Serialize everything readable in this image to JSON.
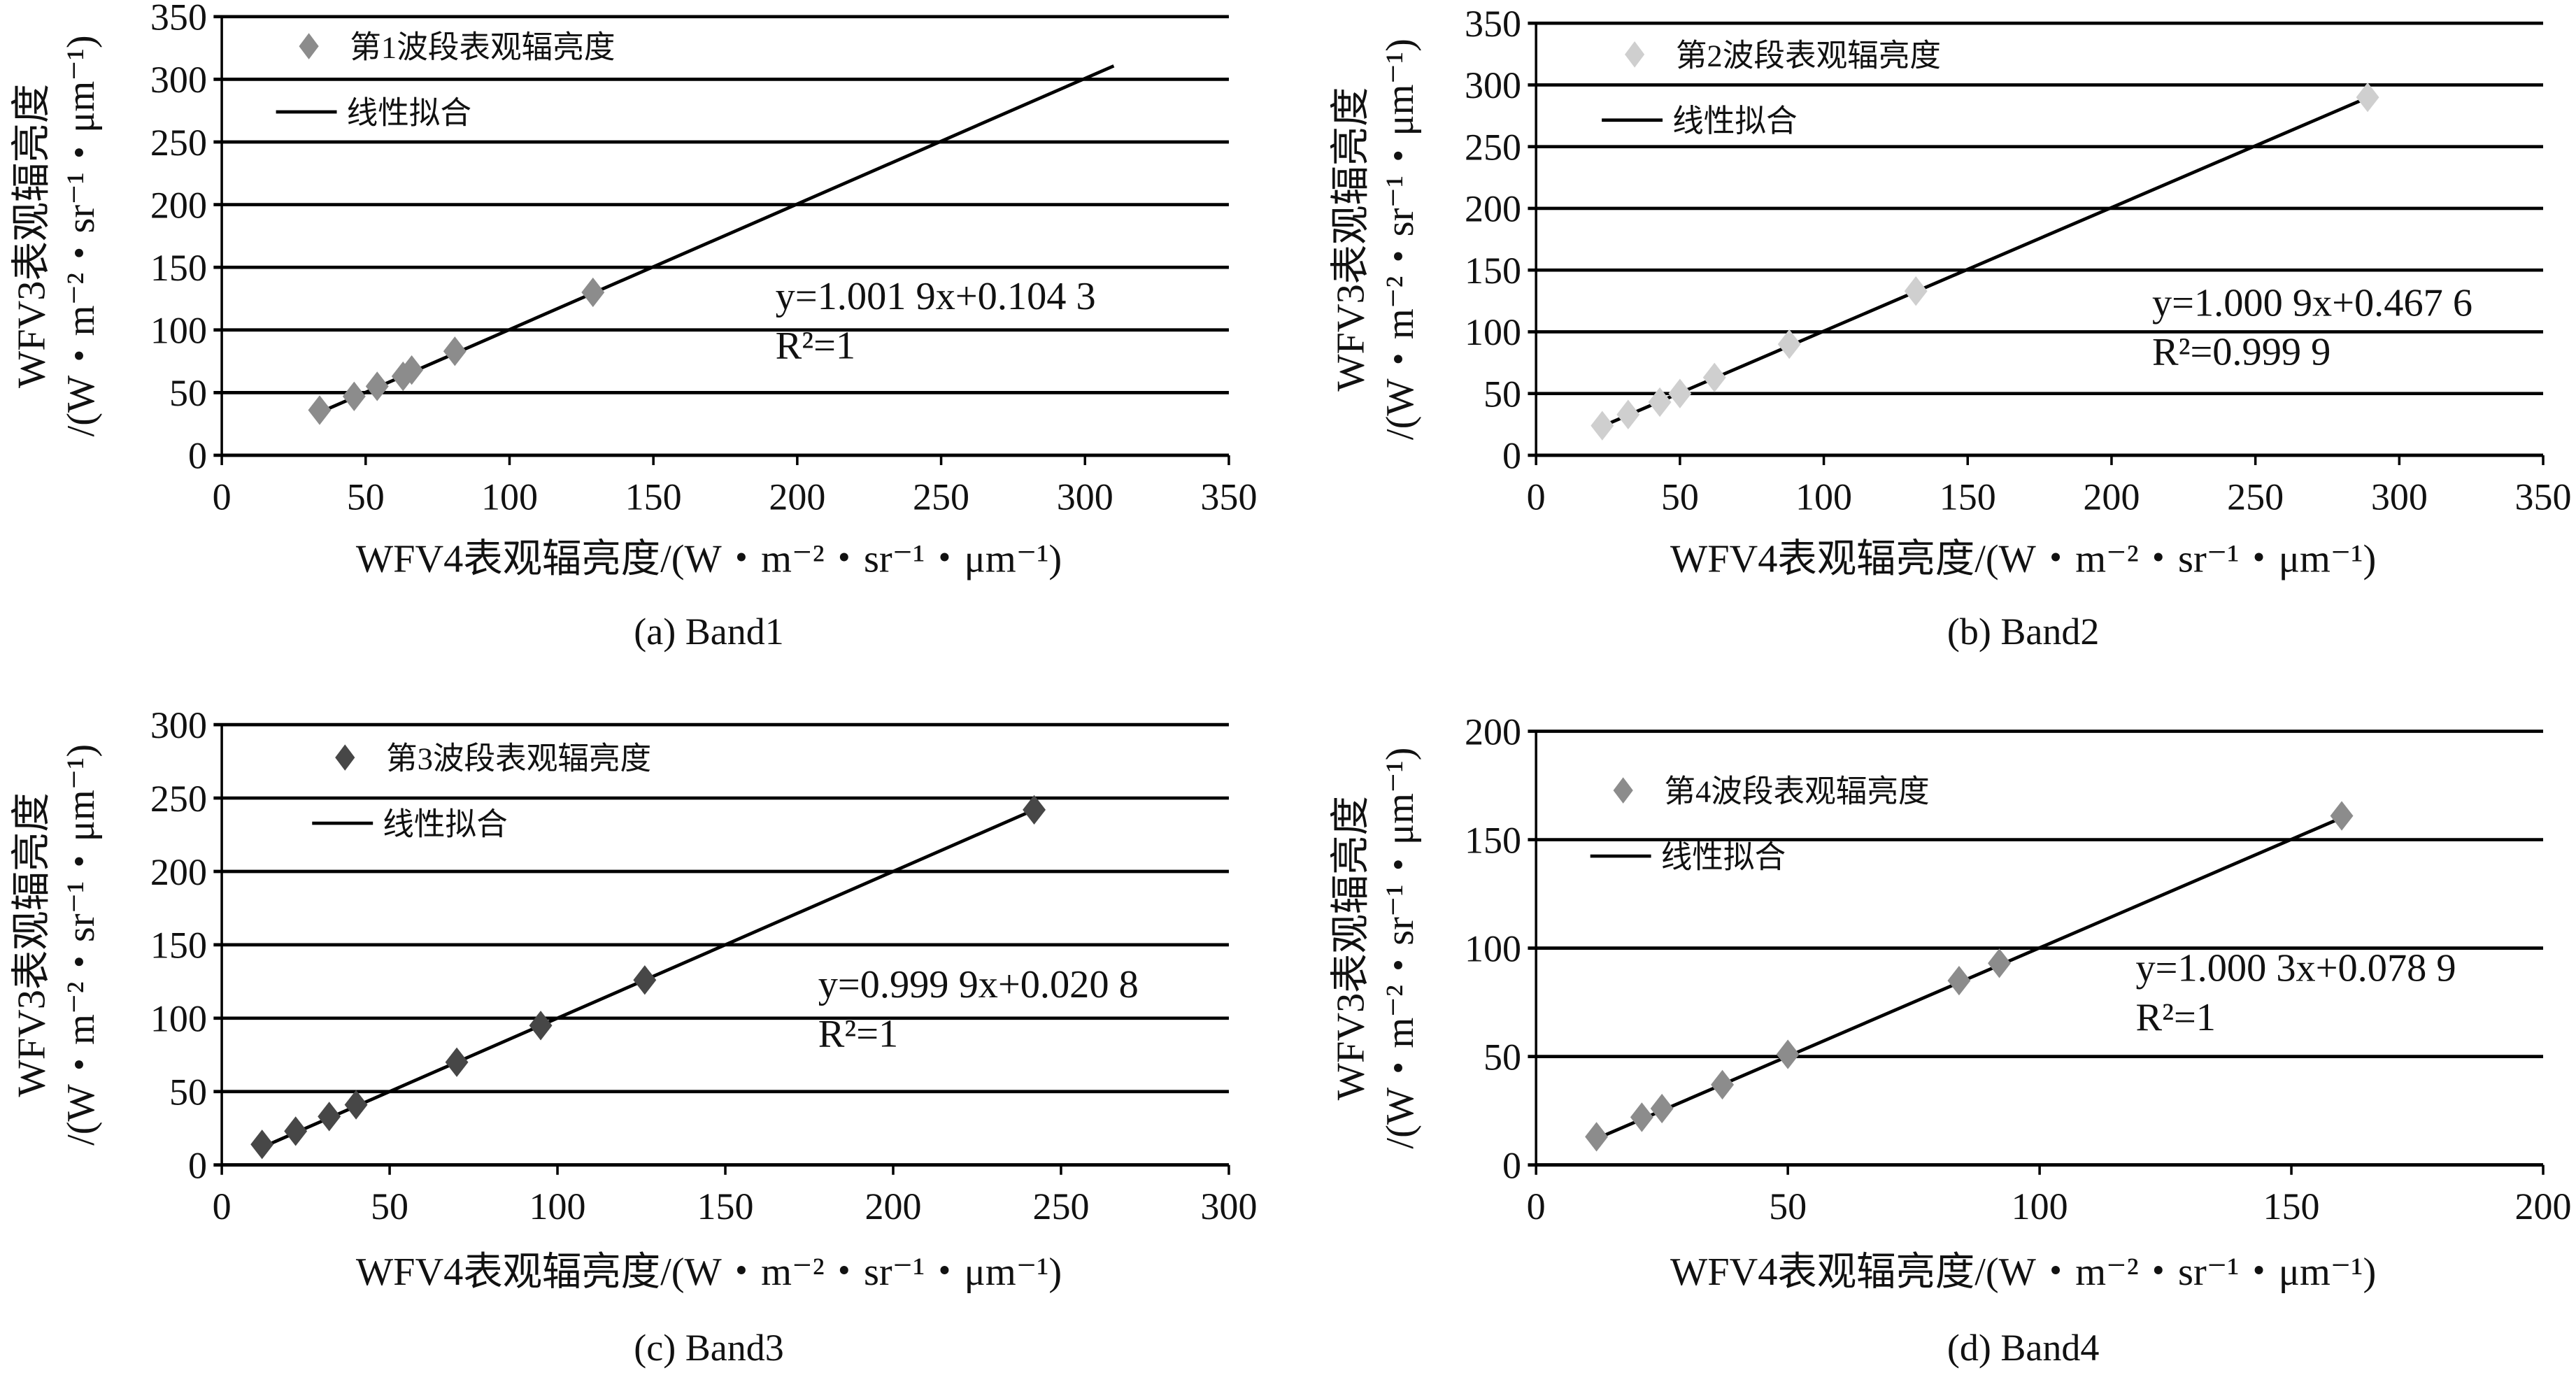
{
  "chart_data": [
    {
      "type": "scatter",
      "caption": "(a) Band1",
      "xlabel": "WFV4表观辐亮度/(W・m⁻²・sr⁻¹・μm⁻¹)",
      "ylabel_line1": "WFV3表观辐亮度",
      "ylabel_line2": "/(W・m⁻²・sr⁻¹・μm⁻¹)",
      "xlim": [
        0,
        350
      ],
      "ylim": [
        0,
        350
      ],
      "xticks": [
        0,
        50,
        100,
        150,
        200,
        250,
        300,
        350
      ],
      "yticks": [
        0,
        50,
        100,
        150,
        200,
        250,
        300,
        350
      ],
      "grid": "horizontal",
      "legend_points": "第1波段表观辐亮度",
      "legend_fit": "线性拟合",
      "equation": "y=1.001 9x+0.104 3",
      "r2": "R²=1",
      "slope": 1.0019,
      "intercept": 0.1043,
      "fit_x_range": [
        34,
        310
      ],
      "marker_color": "#8c8c8c",
      "x": [
        34,
        46,
        54,
        63,
        66,
        81,
        129
      ],
      "y": [
        36,
        47,
        55,
        63,
        68,
        83,
        130
      ]
    },
    {
      "type": "scatter",
      "caption": "(b) Band2",
      "xlabel": "WFV4表观辐亮度/(W・m⁻²・sr⁻¹・μm⁻¹)",
      "ylabel_line1": "WFV3表观辐亮度",
      "ylabel_line2": "/(W・m⁻²・sr⁻¹・μm⁻¹)",
      "xlim": [
        0,
        350
      ],
      "ylim": [
        0,
        350
      ],
      "xticks": [
        0,
        50,
        100,
        150,
        200,
        250,
        300,
        350
      ],
      "yticks": [
        0,
        50,
        100,
        150,
        200,
        250,
        300,
        350
      ],
      "grid": "horizontal",
      "legend_points": "第2波段表观辐亮度",
      "legend_fit": "线性拟合",
      "equation": "y=1.000 9x+0.467 6",
      "r2": "R²=0.999 9",
      "slope": 1.0009,
      "intercept": 0.4676,
      "fit_x_range": [
        24,
        289
      ],
      "marker_color": "#cfcfcf",
      "x": [
        23,
        32,
        43,
        50,
        62,
        88,
        132,
        289
      ],
      "y": [
        24,
        33,
        43,
        50,
        63,
        90,
        133,
        290
      ]
    },
    {
      "type": "scatter",
      "caption": "(c) Band3",
      "xlabel": "WFV4表观辐亮度/(W・m⁻²・sr⁻¹・μm⁻¹)",
      "ylabel_line1": "WFV3表观辐亮度",
      "ylabel_line2": "/(W・m⁻²・sr⁻¹・μm⁻¹)",
      "xlim": [
        0,
        300
      ],
      "ylim": [
        0,
        300
      ],
      "xticks": [
        0,
        50,
        100,
        150,
        200,
        250,
        300
      ],
      "yticks": [
        0,
        50,
        100,
        150,
        200,
        250,
        300
      ],
      "grid": "horizontal",
      "legend_points": "第3波段表观辐亮度",
      "legend_fit": "线性拟合",
      "equation": "y=0.999 9x+0.020 8",
      "r2": "R²=1",
      "slope": 0.9999,
      "intercept": 0.0208,
      "fit_x_range": [
        12,
        242
      ],
      "marker_color": "#474747",
      "x": [
        12,
        22,
        32,
        40,
        70,
        95,
        126,
        242
      ],
      "y": [
        14,
        23,
        33,
        41,
        70,
        95,
        126,
        242
      ]
    },
    {
      "type": "scatter",
      "caption": "(d) Band4",
      "xlabel": "WFV4表观辐亮度/(W・m⁻²・sr⁻¹・μm⁻¹)",
      "ylabel_line1": "WFV3表观辐亮度",
      "ylabel_line2": "/(W・m⁻²・sr⁻¹・μm⁻¹)",
      "xlim": [
        0,
        200
      ],
      "ylim": [
        0,
        200
      ],
      "xticks": [
        0,
        50,
        100,
        150,
        200
      ],
      "yticks": [
        0,
        50,
        100,
        150,
        200
      ],
      "grid": "horizontal",
      "legend_points": "第4波段表观辐亮度",
      "legend_fit": "线性拟合",
      "equation": "y=1.000 3x+0.078 9",
      "r2": "R²=1",
      "slope": 1.0003,
      "intercept": 0.0789,
      "fit_x_range": [
        12,
        160
      ],
      "marker_color": "#8c8c8c",
      "x": [
        12,
        21,
        25,
        37,
        50,
        84,
        92,
        160
      ],
      "y": [
        13,
        22,
        26,
        37,
        51,
        85,
        93,
        161
      ]
    }
  ]
}
